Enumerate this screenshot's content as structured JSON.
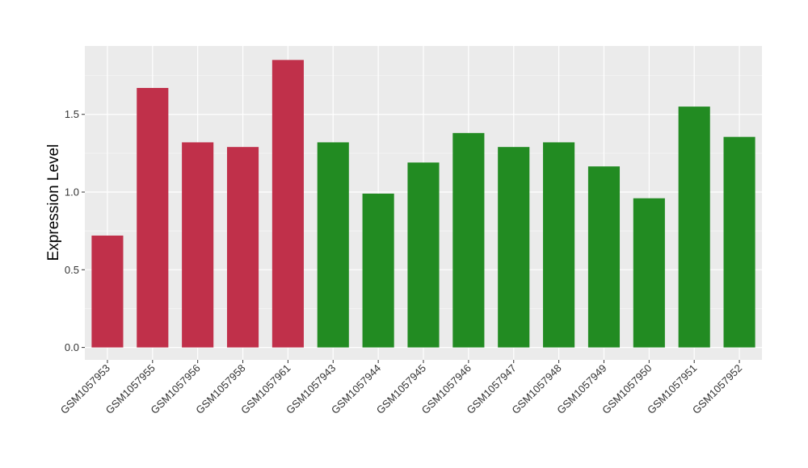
{
  "chart_data": {
    "type": "bar",
    "title": "",
    "xlabel": "",
    "ylabel": "Expression Level",
    "ylim": [
      -0.08,
      1.94
    ],
    "yticks": [
      "0.0",
      "0.5",
      "1.0",
      "1.5"
    ],
    "grid": true,
    "panel_background": "#ebebeb",
    "categories": [
      "GSM1057953",
      "GSM1057955",
      "GSM1057956",
      "GSM1057958",
      "GSM1057961",
      "GSM1057943",
      "GSM1057944",
      "GSM1057945",
      "GSM1057946",
      "GSM1057947",
      "GSM1057948",
      "GSM1057949",
      "GSM1057950",
      "GSM1057951",
      "GSM1057952"
    ],
    "values": [
      0.72,
      1.67,
      1.32,
      1.29,
      1.85,
      1.32,
      0.99,
      1.19,
      1.38,
      1.29,
      1.32,
      1.165,
      0.96,
      1.55,
      1.355
    ],
    "bar_colors": [
      "#c0304a",
      "#c0304a",
      "#c0304a",
      "#c0304a",
      "#c0304a",
      "#228b22",
      "#228b22",
      "#228b22",
      "#228b22",
      "#228b22",
      "#228b22",
      "#228b22",
      "#228b22",
      "#228b22",
      "#228b22"
    ]
  }
}
